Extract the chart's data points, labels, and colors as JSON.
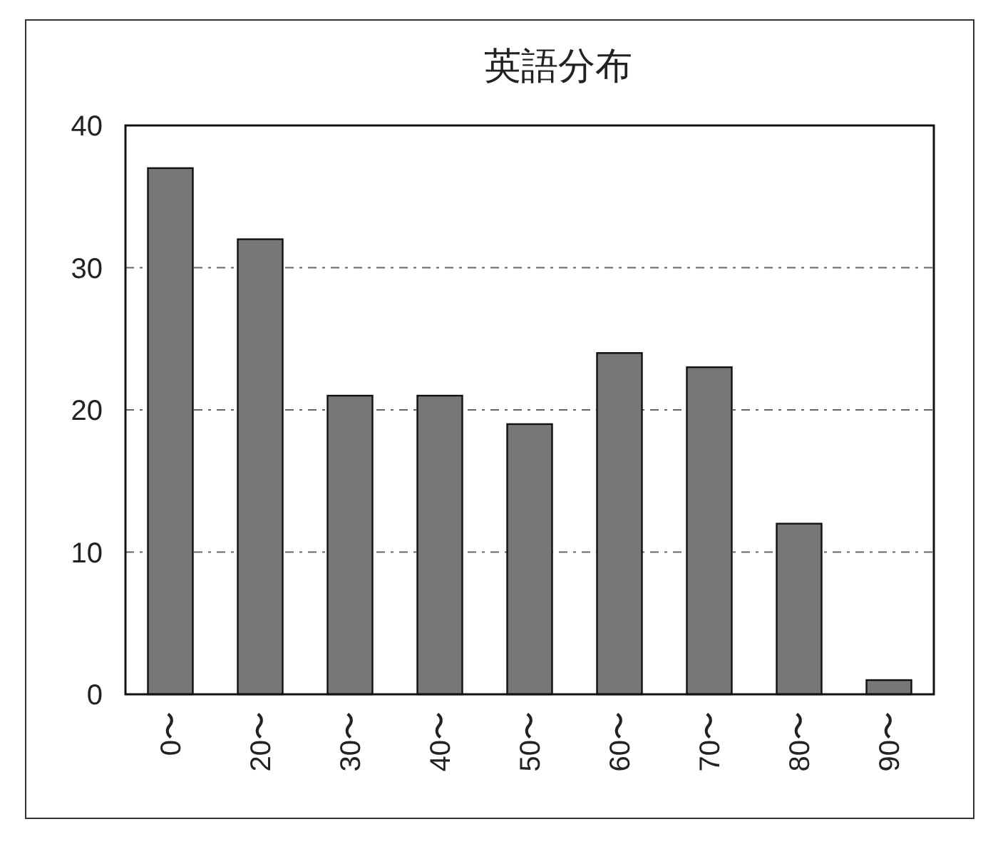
{
  "chart_data": {
    "type": "bar",
    "title": "英語分布",
    "categories": [
      "0〜",
      "20〜",
      "30〜",
      "40〜",
      "50〜",
      "60〜",
      "70〜",
      "80〜",
      "90〜"
    ],
    "values": [
      37,
      32,
      21,
      21,
      19,
      24,
      23,
      12,
      1
    ],
    "color": "#777777",
    "ylim": [
      0,
      40
    ],
    "yticks": [
      0,
      10,
      20,
      30,
      40
    ],
    "grid": "y"
  }
}
